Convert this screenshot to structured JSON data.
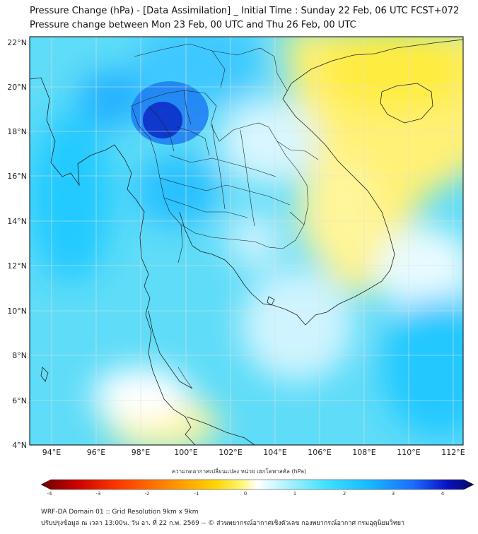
{
  "title_line1": "Pressure Change (hPa) - [Data Assimilation] _ Initial Time : Sunday 22 Feb, 06 UTC FCST+072",
  "title_line2": "Pressure change between Mon 23 Feb, 00 UTC and Thu 26 Feb, 00 UTC",
  "lat_labels": [
    "22°N",
    "20°N",
    "18°N",
    "16°N",
    "14°N",
    "12°N",
    "10°N",
    "8°N",
    "6°N",
    "4°N"
  ],
  "lon_labels": [
    "94°E",
    "96°E",
    "98°E",
    "100°E",
    "102°E",
    "104°E",
    "106°E",
    "108°E",
    "110°E",
    "112°E"
  ],
  "colorbar": {
    "title": "ความกดอากาศเปลี่ยนแปลง หน่วย เฮกโตพาสคัล (hPa)",
    "ticks": [
      "-4",
      "-3",
      "-2",
      "-1",
      "0",
      "1",
      "2",
      "3",
      "4"
    ],
    "colors": [
      "#6b0000",
      "#c80000",
      "#ff3a00",
      "#ff8c00",
      "#ffd200",
      "#fff46a",
      "#ffffff",
      "#b8f3ff",
      "#3fe0ff",
      "#16b8ff",
      "#1a6cff",
      "#0a10c0",
      "#060a60"
    ]
  },
  "footer_line1": "WRF-DA Domain 01 :: Grid Resolution 9km x 9km",
  "footer_line2": "ปรับปรุงข้อมูล ณ เวลา 13:00น. วัน อา. ที่ 22 ก.พ. 2569 -- © ส่วนพยากรณ์อากาศเชิงตัวเลข กองพยากรณ์อากาศ กรมอุตุนิยมวิทยา"
}
